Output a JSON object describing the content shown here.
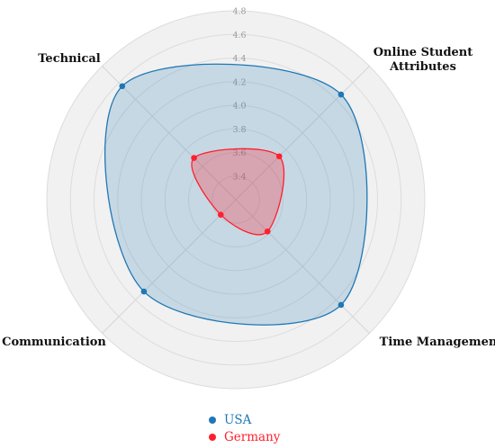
{
  "chart_data": {
    "type": "radar",
    "axes": [
      "Online Student Attributes",
      "Time Management",
      "Communication",
      "Technical"
    ],
    "axis_labels_display": [
      [
        "Online Student",
        "Attributes"
      ],
      [
        "Time Management"
      ],
      [
        "Communication"
      ],
      [
        "Technical"
      ]
    ],
    "rlim": [
      3.2,
      4.8
    ],
    "ticks": [
      3.4,
      3.6,
      3.8,
      4.0,
      4.2,
      4.4,
      4.6,
      4.8
    ],
    "tick_labels": [
      "3.4",
      "3.6",
      "3.8",
      "4.0",
      "4.2",
      "4.4",
      "4.6",
      "4.8"
    ],
    "series": [
      {
        "name": "USA",
        "values": [
          4.46,
          4.46,
          4.3,
          4.56
        ],
        "color": "#1f77b4",
        "fill": "rgba(31,119,180,0.2)"
      },
      {
        "name": "Germany",
        "values": [
          3.72,
          3.58,
          3.38,
          3.7
        ],
        "color": "#ff1f2d",
        "fill": "rgba(255,31,45,0.28)"
      }
    ],
    "grid": true,
    "legend_position": "bottom"
  }
}
